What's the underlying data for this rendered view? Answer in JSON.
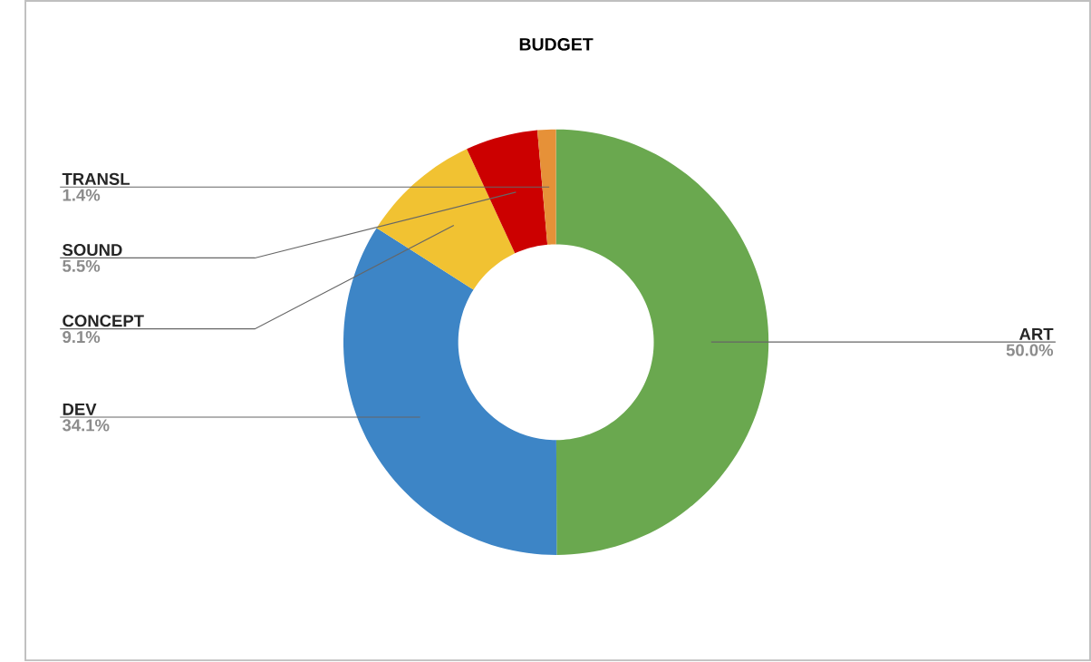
{
  "chart_data": {
    "type": "donut",
    "title": "BUDGET",
    "categories": [
      "ART",
      "DEV",
      "CONCEPT",
      "SOUND",
      "TRANSL"
    ],
    "values": [
      50.0,
      34.1,
      9.1,
      5.5,
      1.4
    ],
    "value_labels": [
      "50.0%",
      "34.1%",
      "9.1%",
      "5.5%",
      "1.4%"
    ],
    "colors": [
      "#6aa84f",
      "#3d85c6",
      "#f1c232",
      "#cc0000",
      "#e69138"
    ]
  }
}
